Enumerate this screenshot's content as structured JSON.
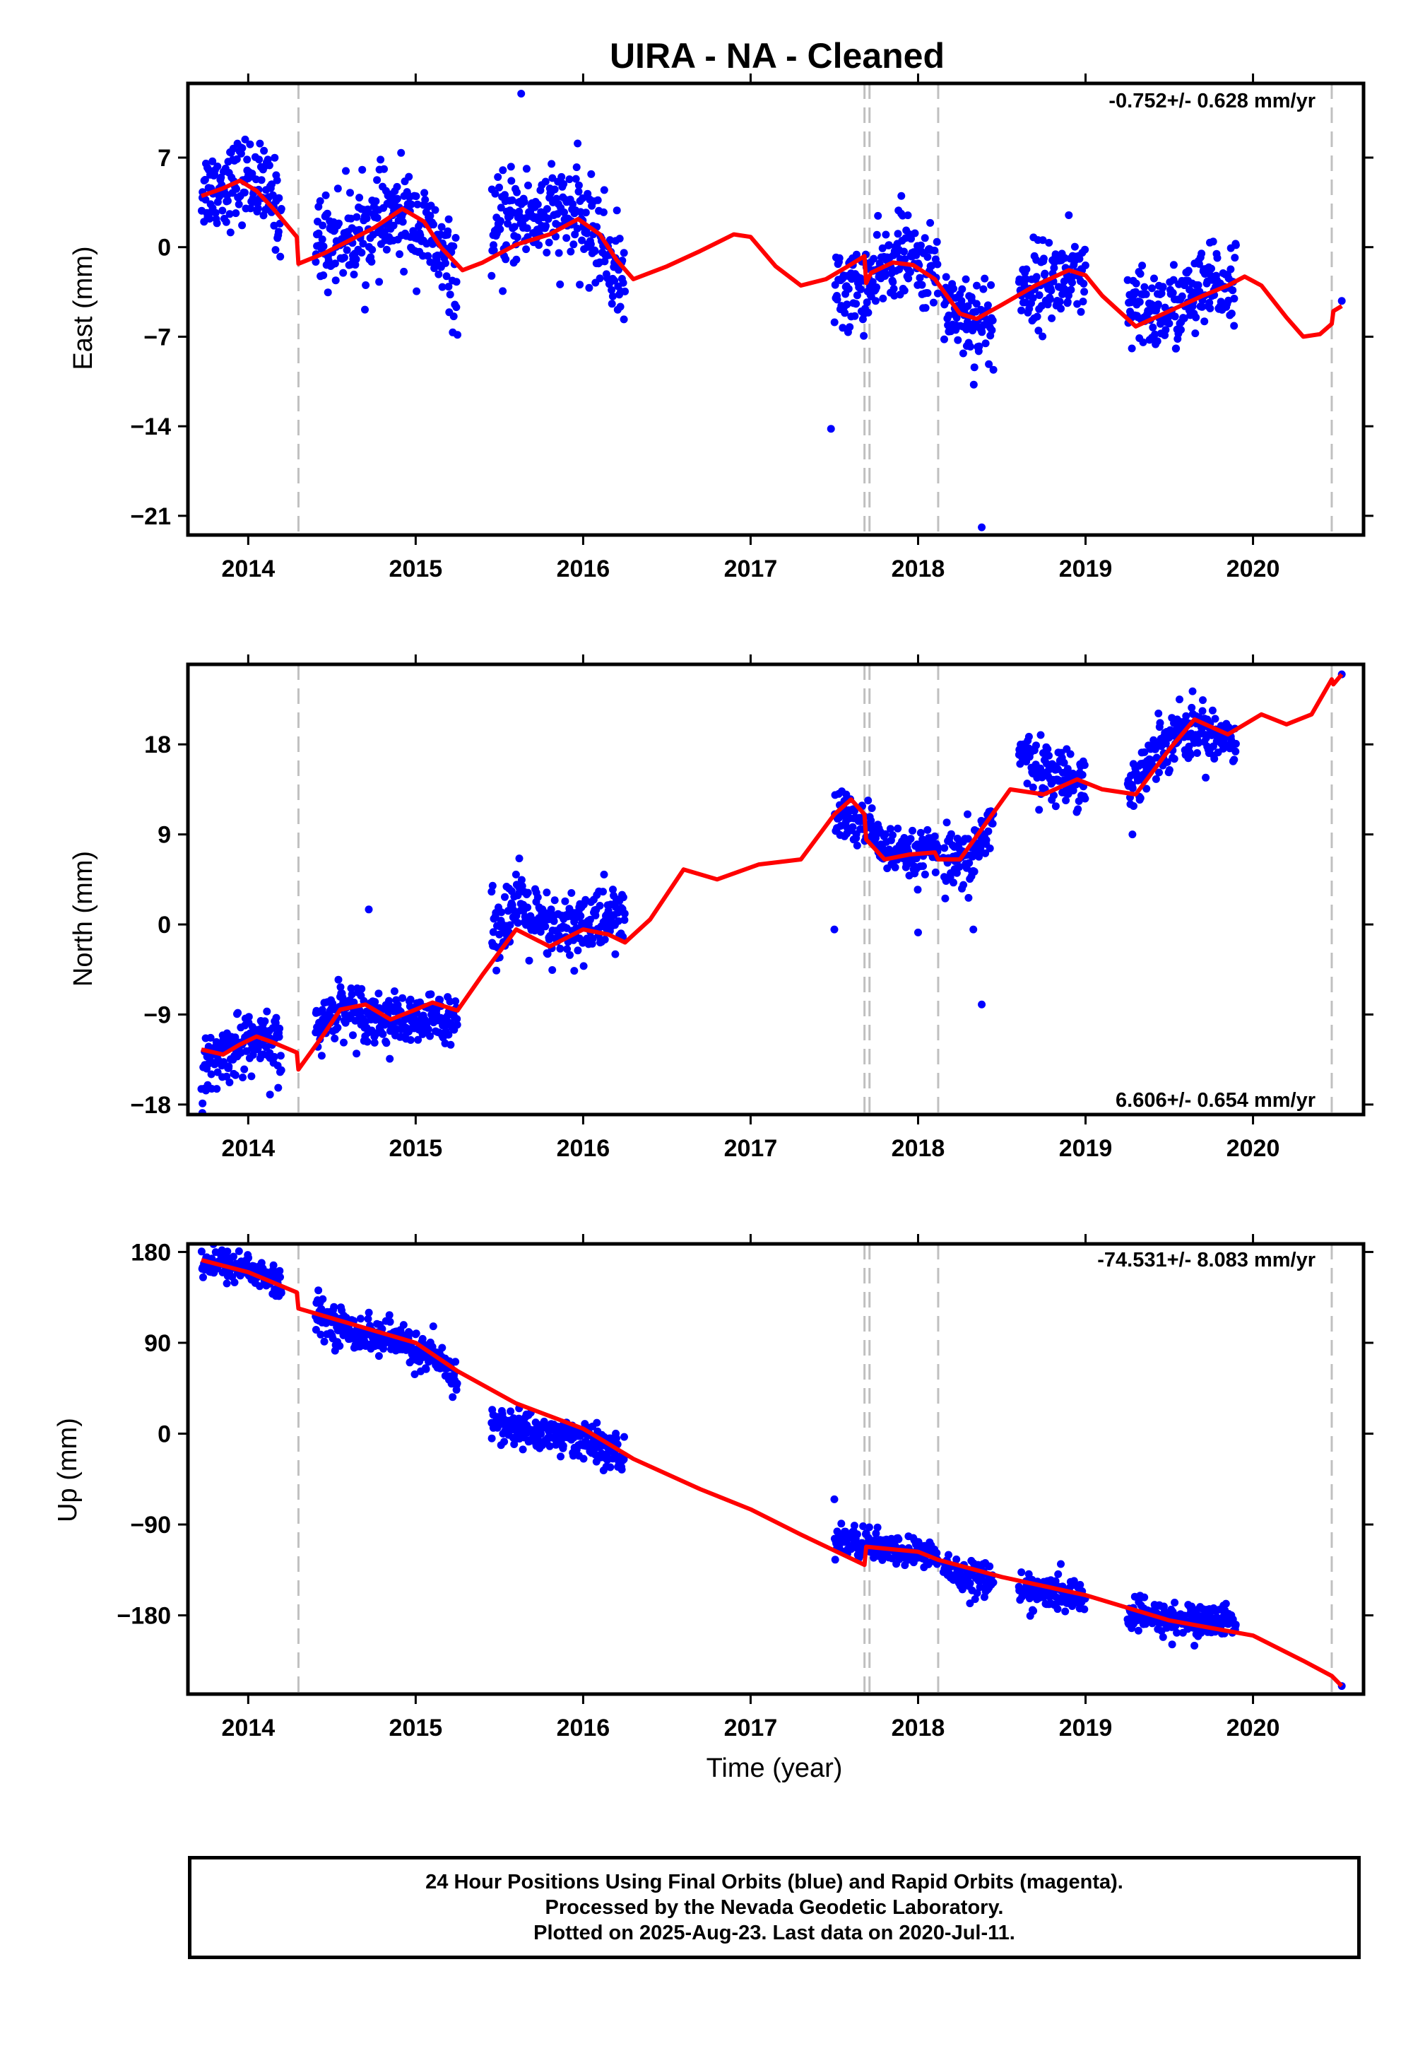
{
  "title": "UIRA  - NA - Cleaned",
  "colors": {
    "data_points": "#0000ff",
    "model_line": "#ff0000",
    "event_lines": "#c0c0c0",
    "frame": "#000000"
  },
  "footer": {
    "line1": "24 Hour Positions Using Final Orbits (blue) and Rapid Orbits (magenta).",
    "line2": "Processed by the Nevada Geodetic Laboratory.",
    "line3": "Plotted on 2025-Aug-23. Last data on 2020-Jul-11."
  },
  "chart_data": [
    {
      "type": "scatter",
      "component": "east",
      "ylabel": "East (mm)",
      "xlabel": "",
      "xlim": [
        2013.64,
        2020.66
      ],
      "ylim": [
        -22.5,
        12.8
      ],
      "xticks": [
        2014,
        2015,
        2016,
        2017,
        2018,
        2019,
        2020
      ],
      "yticks": [
        7,
        0,
        -7,
        -14,
        -21
      ],
      "ytick_labels": [
        "7",
        "0",
        "−7",
        "−14",
        "−21"
      ],
      "rate_text": "-0.752+/- 0.628 mm/yr",
      "rate_position": "top-right",
      "event_lines_x": [
        2014.3,
        2017.68,
        2017.71,
        2018.12,
        2020.47
      ],
      "segments": [
        {
          "start": 2013.72,
          "end": 2014.2,
          "knots": [
            [
              2013.72,
              4.5
            ],
            [
              2013.85,
              4.8
            ],
            [
              2014.0,
              5.5
            ],
            [
              2014.15,
              3.8
            ],
            [
              2014.2,
              2.0
            ]
          ],
          "noise": 1.6
        },
        {
          "start": 2014.4,
          "end": 2015.25,
          "knots": [
            [
              2014.4,
              0.5
            ],
            [
              2014.6,
              0.8
            ],
            [
              2014.8,
              2.0
            ],
            [
              2014.95,
              2.5
            ],
            [
              2015.1,
              0.5
            ],
            [
              2015.25,
              -3.0
            ]
          ],
          "noise": 1.8
        },
        {
          "start": 2015.45,
          "end": 2016.25,
          "knots": [
            [
              2015.45,
              0.5
            ],
            [
              2015.6,
              2.5
            ],
            [
              2015.75,
              2.5
            ],
            [
              2015.95,
              2.5
            ],
            [
              2016.1,
              0.5
            ],
            [
              2016.25,
              -3.0
            ]
          ],
          "noise": 1.9
        },
        {
          "start": 2017.5,
          "end": 2017.78,
          "knots": [
            [
              2017.5,
              -3.5
            ],
            [
              2017.65,
              -3.2
            ],
            [
              2017.78,
              -2.5
            ]
          ],
          "noise": 1.6
        },
        {
          "start": 2017.78,
          "end": 2018.12,
          "knots": [
            [
              2017.78,
              -1.5
            ],
            [
              2017.9,
              -0.5
            ],
            [
              2018.05,
              -1.8
            ],
            [
              2018.12,
              -2.2
            ]
          ],
          "noise": 1.5
        },
        {
          "start": 2018.15,
          "end": 2018.45,
          "knots": [
            [
              2018.15,
              -4.0
            ],
            [
              2018.3,
              -5.5
            ],
            [
              2018.45,
              -6.0
            ]
          ],
          "noise": 1.8
        },
        {
          "start": 2018.6,
          "end": 2019.0,
          "knots": [
            [
              2018.6,
              -3.5
            ],
            [
              2018.8,
              -2.5
            ],
            [
              2019.0,
              -3.0
            ]
          ],
          "noise": 1.6
        },
        {
          "start": 2019.25,
          "end": 2019.9,
          "knots": [
            [
              2019.25,
              -5.0
            ],
            [
              2019.5,
              -5.0
            ],
            [
              2019.7,
              -3.5
            ],
            [
              2019.9,
              -2.5
            ]
          ],
          "noise": 1.6
        }
      ],
      "extra_points": [
        [
          2015.63,
          12.0
        ],
        [
          2017.48,
          -14.2
        ],
        [
          2018.38,
          -21.9
        ],
        [
          2020.53,
          -4.2
        ],
        [
          2018.9,
          2.5
        ],
        [
          2017.9,
          4.0
        ]
      ],
      "model_line": [
        [
          2013.72,
          4.0
        ],
        [
          2013.85,
          4.6
        ],
        [
          2013.95,
          5.2
        ],
        [
          2014.05,
          4.4
        ],
        [
          2014.15,
          3.0
        ],
        [
          2014.29,
          0.8
        ],
        [
          2014.3,
          -1.3
        ],
        [
          2014.45,
          -0.5
        ],
        [
          2014.6,
          0.5
        ],
        [
          2014.75,
          1.5
        ],
        [
          2014.92,
          3.0
        ],
        [
          2015.05,
          2.0
        ],
        [
          2015.15,
          0.0
        ],
        [
          2015.28,
          -1.8
        ],
        [
          2015.4,
          -1.2
        ],
        [
          2015.6,
          0.2
        ],
        [
          2015.8,
          1.0
        ],
        [
          2015.97,
          2.2
        ],
        [
          2016.1,
          1.0
        ],
        [
          2016.2,
          -1.0
        ],
        [
          2016.3,
          -2.5
        ],
        [
          2016.5,
          -1.5
        ],
        [
          2016.7,
          -0.3
        ],
        [
          2016.9,
          1.0
        ],
        [
          2017.0,
          0.8
        ],
        [
          2017.15,
          -1.5
        ],
        [
          2017.3,
          -3.0
        ],
        [
          2017.45,
          -2.5
        ],
        [
          2017.58,
          -1.5
        ],
        [
          2017.68,
          -0.7
        ],
        [
          2017.69,
          -2.8
        ],
        [
          2017.72,
          -2.0
        ],
        [
          2017.85,
          -1.2
        ],
        [
          2017.97,
          -1.4
        ],
        [
          2018.1,
          -2.5
        ],
        [
          2018.25,
          -5.2
        ],
        [
          2018.35,
          -5.6
        ],
        [
          2018.5,
          -4.5
        ],
        [
          2018.7,
          -3.0
        ],
        [
          2018.9,
          -1.8
        ],
        [
          2019.0,
          -2.2
        ],
        [
          2019.1,
          -3.8
        ],
        [
          2019.3,
          -6.2
        ],
        [
          2019.5,
          -5.0
        ],
        [
          2019.7,
          -3.8
        ],
        [
          2019.85,
          -3.0
        ],
        [
          2019.95,
          -2.3
        ],
        [
          2020.05,
          -3.0
        ],
        [
          2020.2,
          -5.5
        ],
        [
          2020.3,
          -7.0
        ],
        [
          2020.4,
          -6.8
        ],
        [
          2020.47,
          -6.0
        ],
        [
          2020.48,
          -5.0
        ],
        [
          2020.53,
          -4.6
        ]
      ]
    },
    {
      "type": "scatter",
      "component": "north",
      "ylabel": "North (mm)",
      "xlabel": "",
      "xlim": [
        2013.64,
        2020.66
      ],
      "ylim": [
        -19,
        26
      ],
      "xticks": [
        2014,
        2015,
        2016,
        2017,
        2018,
        2019,
        2020
      ],
      "yticks": [
        18,
        9,
        0,
        -9,
        -18
      ],
      "ytick_labels": [
        "18",
        "9",
        "0",
        "−9",
        "−18"
      ],
      "rate_text": "6.606+/- 0.654 mm/yr",
      "rate_position": "bottom-right",
      "event_lines_x": [
        2014.3,
        2017.68,
        2017.71,
        2018.12,
        2020.47
      ],
      "segments": [
        {
          "start": 2013.72,
          "end": 2014.2,
          "knots": [
            [
              2013.72,
              -15.0
            ],
            [
              2013.85,
              -13.0
            ],
            [
              2014.0,
              -11.5
            ],
            [
              2014.1,
              -12.0
            ],
            [
              2014.2,
              -12.5
            ]
          ],
          "noise": 1.5
        },
        {
          "start": 2014.4,
          "end": 2015.25,
          "knots": [
            [
              2014.4,
              -11.0
            ],
            [
              2014.55,
              -8.0
            ],
            [
              2014.8,
              -9.5
            ],
            [
              2015.0,
              -10.0
            ],
            [
              2015.2,
              -9.0
            ]
          ],
          "noise": 1.3
        },
        {
          "start": 2015.45,
          "end": 2016.25,
          "knots": [
            [
              2015.45,
              -1.0
            ],
            [
              2015.6,
              2.0
            ],
            [
              2015.8,
              -1.0
            ],
            [
              2016.0,
              0.0
            ],
            [
              2016.25,
              1.0
            ]
          ],
          "noise": 1.8
        },
        {
          "start": 2017.5,
          "end": 2017.78,
          "knots": [
            [
              2017.5,
              11.0
            ],
            [
              2017.6,
              10.5
            ],
            [
              2017.78,
              9.0
            ]
          ],
          "noise": 1.3
        },
        {
          "start": 2017.78,
          "end": 2018.12,
          "knots": [
            [
              2017.78,
              7.5
            ],
            [
              2017.95,
              6.5
            ],
            [
              2018.12,
              7.5
            ]
          ],
          "noise": 1.1
        },
        {
          "start": 2018.15,
          "end": 2018.45,
          "knots": [
            [
              2018.15,
              6.0
            ],
            [
              2018.3,
              6.0
            ],
            [
              2018.45,
              11.0
            ]
          ],
          "noise": 1.6
        },
        {
          "start": 2018.6,
          "end": 2019.0,
          "knots": [
            [
              2018.6,
              17.0
            ],
            [
              2018.8,
              15.0
            ],
            [
              2019.0,
              14.5
            ]
          ],
          "noise": 1.3
        },
        {
          "start": 2019.25,
          "end": 2019.9,
          "knots": [
            [
              2019.25,
              13.5
            ],
            [
              2019.5,
              19.0
            ],
            [
              2019.7,
              19.5
            ],
            [
              2019.9,
              18.5
            ]
          ],
          "noise": 1.4
        }
      ],
      "extra_points": [
        [
          2014.72,
          1.5
        ],
        [
          2017.5,
          -0.5
        ],
        [
          2018.0,
          -0.8
        ],
        [
          2018.38,
          -8.0
        ],
        [
          2018.33,
          -0.5
        ],
        [
          2020.53,
          25.0
        ],
        [
          2019.28,
          9.0
        ],
        [
          2014.13,
          -17.0
        ]
      ],
      "model_line": [
        [
          2013.72,
          -12.5
        ],
        [
          2013.85,
          -13.0
        ],
        [
          2013.95,
          -12.0
        ],
        [
          2014.05,
          -11.2
        ],
        [
          2014.15,
          -11.8
        ],
        [
          2014.29,
          -12.8
        ],
        [
          2014.3,
          -14.5
        ],
        [
          2014.45,
          -11.0
        ],
        [
          2014.55,
          -8.5
        ],
        [
          2014.7,
          -8.0
        ],
        [
          2014.85,
          -9.5
        ],
        [
          2015.0,
          -8.5
        ],
        [
          2015.1,
          -7.8
        ],
        [
          2015.25,
          -8.6
        ],
        [
          2015.4,
          -5.0
        ],
        [
          2015.6,
          -0.5
        ],
        [
          2015.8,
          -2.2
        ],
        [
          2016.0,
          -0.5
        ],
        [
          2016.15,
          -1.0
        ],
        [
          2016.25,
          -1.8
        ],
        [
          2016.4,
          0.5
        ],
        [
          2016.6,
          5.5
        ],
        [
          2016.8,
          4.5
        ],
        [
          2017.05,
          6.0
        ],
        [
          2017.3,
          6.5
        ],
        [
          2017.5,
          11.0
        ],
        [
          2017.6,
          12.5
        ],
        [
          2017.68,
          11.0
        ],
        [
          2017.69,
          8.5
        ],
        [
          2017.8,
          6.5
        ],
        [
          2017.95,
          7.0
        ],
        [
          2018.1,
          7.2
        ],
        [
          2018.12,
          6.5
        ],
        [
          2018.25,
          6.5
        ],
        [
          2018.4,
          10.0
        ],
        [
          2018.55,
          13.5
        ],
        [
          2018.75,
          13.0
        ],
        [
          2018.95,
          14.5
        ],
        [
          2019.1,
          13.5
        ],
        [
          2019.3,
          13.0
        ],
        [
          2019.5,
          17.5
        ],
        [
          2019.65,
          20.5
        ],
        [
          2019.85,
          19.0
        ],
        [
          2020.05,
          21.0
        ],
        [
          2020.2,
          20.0
        ],
        [
          2020.35,
          21.0
        ],
        [
          2020.47,
          24.5
        ],
        [
          2020.48,
          24.0
        ],
        [
          2020.53,
          25.0
        ]
      ]
    },
    {
      "type": "scatter",
      "component": "up",
      "ylabel": "Up (mm)",
      "xlabel": "Time (year)",
      "xlim": [
        2013.64,
        2020.66
      ],
      "ylim": [
        -258,
        188
      ],
      "xticks": [
        2014,
        2015,
        2016,
        2017,
        2018,
        2019,
        2020
      ],
      "yticks": [
        180,
        90,
        0,
        -90,
        -180
      ],
      "ytick_labels": [
        "180",
        "90",
        "0",
        "−90",
        "−180"
      ],
      "rate_text": "-74.531+/- 8.083 mm/yr",
      "rate_position": "top-right",
      "event_lines_x": [
        2014.3,
        2017.68,
        2017.71,
        2018.12,
        2020.47
      ],
      "segments": [
        {
          "start": 2013.72,
          "end": 2014.2,
          "knots": [
            [
              2013.72,
              170
            ],
            [
              2014.0,
              165
            ],
            [
              2014.2,
              145
            ]
          ],
          "noise": 8
        },
        {
          "start": 2014.4,
          "end": 2015.25,
          "knots": [
            [
              2014.4,
              120
            ],
            [
              2014.6,
              102
            ],
            [
              2014.9,
              92
            ],
            [
              2015.1,
              75
            ],
            [
              2015.25,
              55
            ]
          ],
          "noise": 9
        },
        {
          "start": 2015.45,
          "end": 2016.25,
          "knots": [
            [
              2015.45,
              10
            ],
            [
              2015.7,
              2
            ],
            [
              2016.0,
              -5
            ],
            [
              2016.25,
              -25
            ]
          ],
          "noise": 9
        },
        {
          "start": 2017.5,
          "end": 2017.78,
          "knots": [
            [
              2017.5,
              -105
            ],
            [
              2017.78,
              -112
            ]
          ],
          "noise": 8
        },
        {
          "start": 2017.78,
          "end": 2018.12,
          "knots": [
            [
              2017.78,
              -115
            ],
            [
              2018.12,
              -120
            ]
          ],
          "noise": 7
        },
        {
          "start": 2018.15,
          "end": 2018.45,
          "knots": [
            [
              2018.15,
              -135
            ],
            [
              2018.45,
              -145
            ]
          ],
          "noise": 9
        },
        {
          "start": 2018.6,
          "end": 2019.0,
          "knots": [
            [
              2018.6,
              -155
            ],
            [
              2019.0,
              -162
            ]
          ],
          "noise": 8
        },
        {
          "start": 2019.25,
          "end": 2019.9,
          "knots": [
            [
              2019.25,
              -180
            ],
            [
              2019.6,
              -185
            ],
            [
              2019.9,
              -183
            ]
          ],
          "noise": 8
        }
      ],
      "extra_points": [
        [
          2017.5,
          -65
        ],
        [
          2020.53,
          -250
        ],
        [
          2019.65,
          -210
        ]
      ],
      "model_line": [
        [
          2013.72,
          172
        ],
        [
          2014.0,
          160
        ],
        [
          2014.29,
          140
        ],
        [
          2014.3,
          124
        ],
        [
          2015.0,
          90
        ],
        [
          2015.25,
          62
        ],
        [
          2015.6,
          30
        ],
        [
          2016.0,
          5
        ],
        [
          2016.3,
          -25
        ],
        [
          2016.7,
          -55
        ],
        [
          2017.0,
          -75
        ],
        [
          2017.3,
          -100
        ],
        [
          2017.68,
          -130
        ],
        [
          2017.69,
          -112
        ],
        [
          2018.0,
          -117
        ],
        [
          2018.12,
          -125
        ],
        [
          2018.5,
          -142
        ],
        [
          2019.0,
          -160
        ],
        [
          2019.5,
          -185
        ],
        [
          2020.0,
          -200
        ],
        [
          2020.3,
          -225
        ],
        [
          2020.47,
          -240
        ],
        [
          2020.53,
          -250
        ]
      ]
    }
  ]
}
